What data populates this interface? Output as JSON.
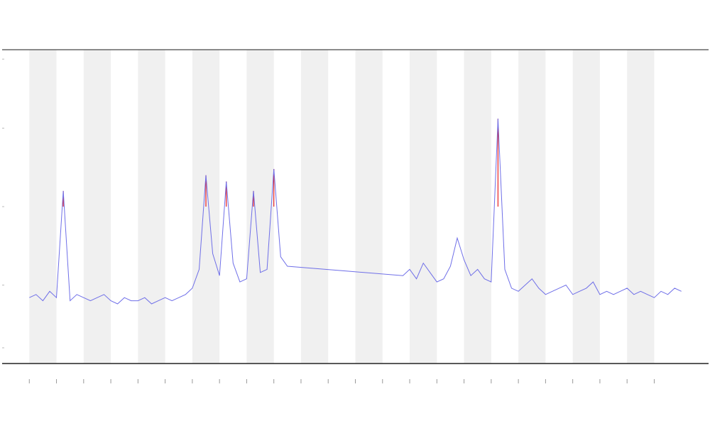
{
  "chart_data": {
    "type": "line",
    "x": [
      0,
      0.25,
      0.5,
      0.75,
      1,
      1.25,
      1.5,
      1.75,
      2,
      2.25,
      2.5,
      2.75,
      3,
      3.25,
      3.5,
      3.75,
      4,
      4.25,
      4.5,
      4.75,
      5,
      5.25,
      5.5,
      5.75,
      6,
      6.25,
      6.5,
      6.75,
      7,
      7.25,
      7.5,
      7.75,
      8,
      8.25,
      8.5,
      8.75,
      9,
      9.25,
      9.5,
      13.75,
      14,
      14.25,
      14.5,
      14.75,
      15,
      15.25,
      15.5,
      15.75,
      16,
      16.25,
      16.5,
      16.75,
      17,
      17.25,
      17.5,
      17.75,
      18,
      18.25,
      18.5,
      18.75,
      19,
      19.25,
      19.5,
      19.75,
      20,
      20.25,
      20.5,
      20.75,
      21,
      21.25,
      21.5,
      21.75,
      22,
      22.25,
      22.5,
      22.75,
      23,
      23.25,
      23.5,
      23.75,
      24
    ],
    "values": [
      21,
      22,
      20,
      23,
      21,
      55,
      20,
      22,
      21,
      20,
      21,
      22,
      20,
      19,
      21,
      20,
      20,
      21,
      19,
      20,
      21,
      20,
      21,
      22,
      24,
      30,
      60,
      35,
      28,
      58,
      32,
      26,
      27,
      55,
      29,
      30,
      62,
      34,
      31,
      28,
      30,
      27,
      32,
      29,
      26,
      27,
      31,
      40,
      33,
      28,
      30,
      27,
      26,
      78,
      30,
      24,
      23,
      25,
      27,
      24,
      22,
      23,
      24,
      25,
      22,
      23,
      24,
      26,
      22,
      23,
      22,
      23,
      24,
      22,
      23,
      22,
      21,
      23,
      22,
      24,
      23
    ],
    "color": "#6f6fe8",
    "threshold": 50,
    "high_color": "#e82020",
    "xlim": [
      -1,
      25
    ],
    "ylim": [
      0,
      100
    ],
    "xticks": [
      0,
      1,
      2,
      3,
      4,
      5,
      6,
      7,
      8,
      9,
      10,
      11,
      12,
      13,
      14,
      15,
      16,
      17,
      18,
      19,
      20,
      21,
      22,
      23
    ],
    "yticks": [
      5,
      25,
      50,
      75,
      97
    ],
    "band_color": "#f0f0f0"
  }
}
